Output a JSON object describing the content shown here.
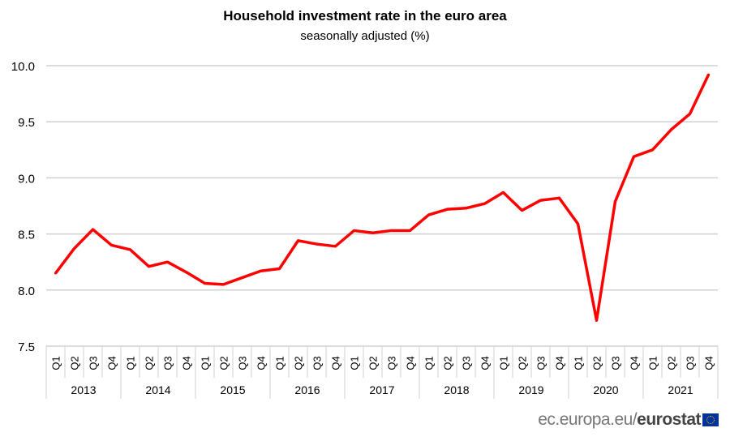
{
  "chart_data": {
    "type": "line",
    "title": "Household  investment  rate in the euro area",
    "subtitle": "seasonally adjusted (%)",
    "ylim": [
      7.5,
      10.0
    ],
    "yticks": [
      "7.5",
      "8.0",
      "8.5",
      "9.0",
      "9.5",
      "10.0"
    ],
    "grid": true,
    "quarters": [
      "Q1",
      "Q2",
      "Q3",
      "Q4"
    ],
    "years": [
      "2013",
      "2014",
      "2015",
      "2016",
      "2017",
      "2018",
      "2019",
      "2020",
      "2021"
    ],
    "series": [
      {
        "color": "#ff0000",
        "values": [
          8.15,
          8.37,
          8.54,
          8.4,
          8.36,
          8.21,
          8.25,
          8.16,
          8.06,
          8.05,
          8.11,
          8.17,
          8.19,
          8.44,
          8.41,
          8.39,
          8.53,
          8.51,
          8.53,
          8.53,
          8.67,
          8.72,
          8.73,
          8.77,
          8.87,
          8.71,
          8.8,
          8.82,
          8.59,
          7.73,
          8.79,
          9.19,
          9.25,
          9.43,
          9.57,
          9.92
        ]
      }
    ]
  },
  "footer": {
    "site": "ec.europa.eu/",
    "brand": "eurostat",
    "flag_icon": "eu-flag-icon"
  }
}
